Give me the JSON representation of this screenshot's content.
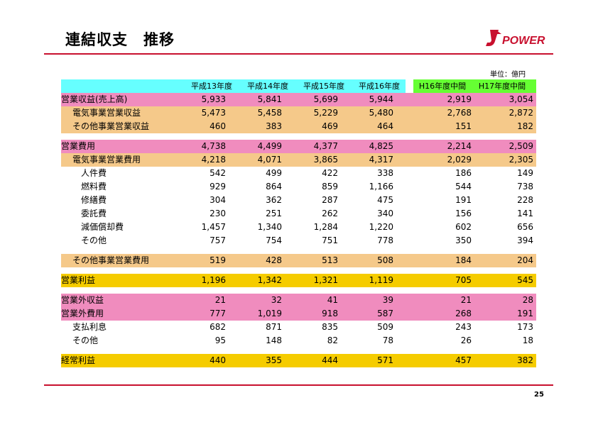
{
  "title": "連結収支　推移",
  "brand": "POWER",
  "unit": "単位：億円",
  "page_number": "25",
  "columns": [
    "平成13年度",
    "平成14年度",
    "平成15年度",
    "平成16年度",
    "H16年度中間",
    "H17年度中間"
  ],
  "rows": [
    {
      "label": "営業収益(売上高)",
      "values": [
        "5,933",
        "5,841",
        "5,699",
        "5,944",
        "2,919",
        "3,054"
      ]
    },
    {
      "label": "電気事業営業収益",
      "values": [
        "5,473",
        "5,458",
        "5,229",
        "5,480",
        "2,768",
        "2,872"
      ]
    },
    {
      "label": "その他事業営業収益",
      "values": [
        "460",
        "383",
        "469",
        "464",
        "151",
        "182"
      ]
    },
    {
      "label": "営業費用",
      "values": [
        "4,738",
        "4,499",
        "4,377",
        "4,825",
        "2,214",
        "2,509"
      ]
    },
    {
      "label": "電気事業営業費用",
      "values": [
        "4,218",
        "4,071",
        "3,865",
        "4,317",
        "2,029",
        "2,305"
      ]
    },
    {
      "label": "人件費",
      "values": [
        "542",
        "499",
        "422",
        "338",
        "186",
        "149"
      ]
    },
    {
      "label": "燃料費",
      "values": [
        "929",
        "864",
        "859",
        "1,166",
        "544",
        "738"
      ]
    },
    {
      "label": "修繕費",
      "values": [
        "304",
        "362",
        "287",
        "475",
        "191",
        "228"
      ]
    },
    {
      "label": "委託費",
      "values": [
        "230",
        "251",
        "262",
        "340",
        "156",
        "141"
      ]
    },
    {
      "label": "減価償却費",
      "values": [
        "1,457",
        "1,340",
        "1,284",
        "1,220",
        "602",
        "656"
      ]
    },
    {
      "label": "その他",
      "values": [
        "757",
        "754",
        "751",
        "778",
        "350",
        "394"
      ]
    },
    {
      "label": "その他事業営業費用",
      "values": [
        "519",
        "428",
        "513",
        "508",
        "184",
        "204"
      ]
    },
    {
      "label": "営業利益",
      "values": [
        "1,196",
        "1,342",
        "1,321",
        "1,119",
        "705",
        "545"
      ]
    },
    {
      "label": "営業外収益",
      "values": [
        "21",
        "32",
        "41",
        "39",
        "21",
        "28"
      ]
    },
    {
      "label": "営業外費用",
      "values": [
        "777",
        "1,019",
        "918",
        "587",
        "268",
        "191"
      ]
    },
    {
      "label": "支払利息",
      "values": [
        "682",
        "871",
        "835",
        "509",
        "243",
        "173"
      ]
    },
    {
      "label": "その他",
      "values": [
        "95",
        "148",
        "82",
        "78",
        "26",
        "18"
      ]
    },
    {
      "label": "経常利益",
      "values": [
        "440",
        "355",
        "444",
        "571",
        "457",
        "382"
      ]
    }
  ],
  "colors": {
    "header_cyan": "#66ffff",
    "header_green": "#66ff33",
    "pink": "#f08cbe",
    "orange": "#f5c98a",
    "yellow": "#f5cc00",
    "accent_red": "#c8102e"
  }
}
